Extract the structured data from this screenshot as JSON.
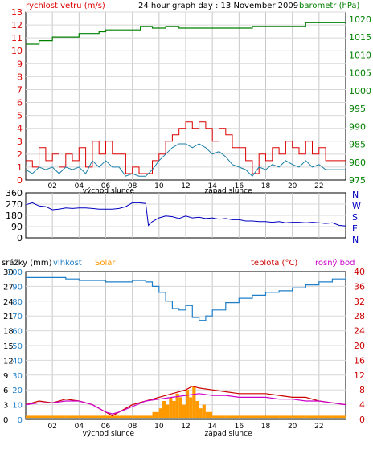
{
  "title": "24 hour graph day : 13 November 2009",
  "colors": {
    "wind_speed": "#dd0000",
    "wind_avg": "#1a7fa8",
    "pressure": "#008000",
    "direction": "#0000c0",
    "humidity": "#1e7ec8",
    "solar": "#ff9900",
    "temperature": "#cc0000",
    "dewpoint": "#cc00cc",
    "rain": "#1e90ff"
  },
  "top_panel": {
    "left_label": "rychlost vetru (m/s)",
    "right_label": "barometr (hPa)",
    "left_ticks": [
      "0",
      "1",
      "2",
      "3",
      "4",
      "5",
      "6",
      "7",
      "8",
      "9",
      "10",
      "11",
      "12",
      "13"
    ],
    "right_ticks": [
      "975",
      "980",
      "985",
      "990",
      "995",
      "1000",
      "1005",
      "1010",
      "1015",
      "1020"
    ],
    "x_ticks": [
      "02",
      "04",
      "06",
      "08",
      "10",
      "12",
      "14",
      "16",
      "18",
      "20",
      "22"
    ],
    "sunrise_label": "východ slunce",
    "sunset_label": "západ slunce"
  },
  "mid_panel": {
    "left_ticks": [
      "0",
      "90",
      "180",
      "270",
      "360"
    ],
    "right_ticks": [
      "N",
      "W",
      "S",
      "E",
      "N"
    ]
  },
  "bottom_panel": {
    "label_rain": "srážky (mm)",
    "label_humidity": "vlhkost",
    "label_solar": "Solar",
    "label_temperature": "teplota (°C)",
    "label_dewpoint": "rosný bod",
    "rain_ticks": [
      "0",
      "3",
      "6",
      "9",
      "12",
      "15",
      "18",
      "21",
      "24",
      "27",
      "30"
    ],
    "humidity_ticks": [
      "0",
      "10",
      "20",
      "30",
      "40",
      "50",
      "60",
      "70",
      "80",
      "90",
      "100"
    ],
    "temp_ticks": [
      "0",
      "4",
      "8",
      "12",
      "16",
      "20",
      "24",
      "28",
      "32",
      "36",
      "40"
    ],
    "x_ticks": [
      "02",
      "04",
      "06",
      "08",
      "10",
      "12",
      "14",
      "16",
      "18",
      "20",
      "22"
    ],
    "sunrise_label": "východ slunce",
    "sunset_label": "západ slunce"
  },
  "chart_data": [
    {
      "type": "line",
      "title": "24 hour graph day : 13 November 2009",
      "ylabel": "rychlost vetru (m/s)",
      "y2label": "barometr (hPa)",
      "xlim": [
        0,
        24
      ],
      "ylim": [
        0,
        13
      ],
      "y2lim": [
        975,
        1022
      ],
      "series": [
        {
          "axis": "y2",
          "x": [
            0,
            1,
            1.5,
            2,
            3,
            4,
            5.5,
            6,
            7,
            8,
            8.6,
            9.5,
            10.5,
            11.5,
            13,
            14,
            15,
            16,
            17,
            18,
            19,
            20,
            21,
            22,
            23,
            24
          ],
          "values": [
            1013,
            1014,
            1014,
            1015,
            1015,
            1016,
            1016.5,
            1017,
            1017,
            1017,
            1018,
            1017.5,
            1018,
            1017.5,
            1017.5,
            1017.5,
            1017.5,
            1017.5,
            1018,
            1018,
            1018,
            1018,
            1019,
            1019,
            1019,
            1019
          ]
        },
        {
          "x": [
            0,
            0.5,
            1,
            1.5,
            2,
            2.5,
            3,
            3.5,
            4,
            4.5,
            5,
            5.5,
            6,
            6.5,
            7,
            7.5,
            8,
            8.5,
            9,
            9.5,
            10,
            10.5,
            11,
            11.5,
            12,
            12.5,
            13,
            13.5,
            14,
            14.5,
            15,
            15.5,
            16,
            16.5,
            17,
            17.5,
            18,
            18.5,
            19,
            19.5,
            20,
            20.5,
            21,
            21.5,
            22,
            22.5,
            23,
            23.5,
            24
          ],
          "values": [
            1.5,
            1.0,
            2.5,
            1.5,
            2.0,
            1.0,
            2.0,
            1.5,
            2.5,
            1.0,
            3.0,
            2.0,
            3.0,
            2.0,
            2.0,
            0.5,
            1.0,
            0.5,
            0.5,
            1.5,
            2.0,
            3.0,
            3.5,
            4.0,
            4.5,
            4.0,
            4.5,
            4.0,
            3.0,
            4.0,
            3.5,
            2.5,
            2.5,
            1.5,
            0.5,
            2.0,
            1.5,
            2.5,
            2.0,
            3.0,
            2.5,
            2.0,
            3.0,
            2.0,
            2.5,
            1.5,
            1.5,
            1.5,
            1.5
          ]
        },
        {
          "x": [
            0,
            0.5,
            1,
            1.5,
            2,
            2.5,
            3,
            3.5,
            4,
            4.5,
            5,
            5.5,
            6,
            6.5,
            7,
            7.5,
            8,
            8.5,
            9,
            9.5,
            10,
            10.5,
            11,
            11.5,
            12,
            12.5,
            13,
            13.5,
            14,
            14.5,
            15,
            15.5,
            16,
            16.5,
            17,
            17.5,
            18,
            18.5,
            19,
            19.5,
            20,
            20.5,
            21,
            21.5,
            22,
            22.5,
            23,
            23.5,
            24
          ],
          "values": [
            0.8,
            0.5,
            1.0,
            0.8,
            1.0,
            0.5,
            1.0,
            0.8,
            1.0,
            0.5,
            1.5,
            1.0,
            1.5,
            1.0,
            1.0,
            0.3,
            0.5,
            0.3,
            0.3,
            0.8,
            1.5,
            2.0,
            2.5,
            2.8,
            2.8,
            2.5,
            2.8,
            2.5,
            2.0,
            2.2,
            1.8,
            1.2,
            1.0,
            0.8,
            0.3,
            1.0,
            0.8,
            1.2,
            1.0,
            1.5,
            1.2,
            1.0,
            1.5,
            1.0,
            1.2,
            0.8,
            0.8,
            0.8,
            0.8
          ]
        }
      ]
    },
    {
      "type": "line",
      "ylim": [
        0,
        360
      ],
      "xlim": [
        0,
        24
      ],
      "series": [
        {
          "x": [
            0,
            0.5,
            1,
            1.5,
            2,
            2.5,
            3,
            3.5,
            4,
            4.5,
            5,
            5.5,
            6,
            6.5,
            7,
            7.5,
            8,
            8.5,
            9,
            9.2,
            9.5,
            10,
            10.5,
            11,
            11.5,
            12,
            12.5,
            13,
            13.5,
            14,
            14.5,
            15,
            15.5,
            16,
            16.5,
            17,
            17.5,
            18,
            18.5,
            19,
            19.5,
            20,
            20.5,
            21,
            21.5,
            22,
            22.5,
            23,
            23.5,
            24
          ],
          "values": [
            265,
            280,
            255,
            250,
            225,
            230,
            240,
            235,
            240,
            240,
            235,
            230,
            230,
            230,
            235,
            250,
            280,
            280,
            275,
            100,
            130,
            160,
            175,
            170,
            155,
            175,
            160,
            165,
            155,
            160,
            150,
            155,
            145,
            145,
            135,
            135,
            130,
            130,
            125,
            130,
            120,
            125,
            125,
            120,
            125,
            120,
            115,
            120,
            100,
            95
          ]
        }
      ]
    },
    {
      "type": "line",
      "ylabel": "srážky (mm)",
      "y2label": "teplota (°C)",
      "xlim": [
        0,
        24
      ],
      "ylim": [
        0,
        30
      ],
      "y2lim": [
        0,
        40
      ],
      "series": [
        {
          "name": "vlhkost",
          "x": [
            0,
            1,
            2,
            3,
            4,
            5,
            6,
            7,
            8,
            8.5,
            9,
            9.5,
            10,
            10.5,
            11,
            11.5,
            12,
            12.5,
            13,
            13.5,
            14,
            15,
            16,
            17,
            18,
            19,
            20,
            21,
            22,
            23,
            24
          ],
          "values": [
            96,
            96,
            96,
            95,
            94,
            94,
            93,
            93,
            94,
            94,
            93,
            90,
            86,
            80,
            75,
            74,
            77,
            69,
            67,
            70,
            74,
            79,
            82,
            84,
            86,
            87,
            89,
            91,
            93,
            95,
            96
          ]
        },
        {
          "name": "teplota (°C)",
          "x": [
            0,
            1,
            2,
            3,
            4,
            5,
            6,
            6.5,
            7,
            8,
            9,
            10,
            11,
            12,
            12.5,
            13,
            14,
            15,
            16,
            17,
            18,
            19,
            20,
            21,
            22,
            23,
            24
          ],
          "values": [
            4.0,
            5.0,
            4.5,
            5.5,
            5.0,
            4.0,
            2.0,
            1.0,
            2.0,
            4.0,
            5.0,
            6.0,
            7.0,
            8.0,
            9.0,
            8.5,
            8.0,
            7.5,
            7.0,
            7.0,
            7.0,
            6.5,
            6.0,
            6.0,
            5.0,
            4.5,
            4.0
          ]
        },
        {
          "name": "rosný bod",
          "x": [
            0,
            1,
            2,
            3,
            4,
            5,
            6,
            6.5,
            7,
            8,
            9,
            10,
            11,
            12,
            13,
            14,
            15,
            16,
            17,
            18,
            19,
            20,
            21,
            22,
            23,
            24
          ],
          "values": [
            4.0,
            4.5,
            4.5,
            5.0,
            5.0,
            4.0,
            2.0,
            1.5,
            2.0,
            3.5,
            5.0,
            5.5,
            6.0,
            6.5,
            7.0,
            6.5,
            6.5,
            6.0,
            6.0,
            6.0,
            5.5,
            5.5,
            5.0,
            5.0,
            4.5,
            4.0
          ]
        },
        {
          "name": "Solar",
          "type": "bar",
          "x": [
            0,
            1,
            2,
            3,
            4,
            5,
            6,
            7,
            8,
            9,
            9.5,
            10,
            10.25,
            10.5,
            10.75,
            11,
            11.25,
            11.5,
            11.75,
            12,
            12.25,
            12.5,
            12.75,
            13,
            13.25,
            13.5,
            14,
            15,
            16,
            17,
            18,
            19,
            20,
            21,
            22,
            23,
            24
          ],
          "values": [
            1,
            1,
            1,
            1,
            1,
            1,
            1,
            1,
            1,
            1,
            2,
            3,
            5,
            4,
            6,
            5,
            7,
            6,
            4,
            8,
            6,
            9,
            5,
            3,
            4,
            2,
            1,
            1,
            1,
            1,
            1,
            1,
            1,
            1,
            1,
            1,
            1
          ]
        },
        {
          "name": "srážky (mm)",
          "values": [
            0
          ]
        }
      ]
    }
  ]
}
